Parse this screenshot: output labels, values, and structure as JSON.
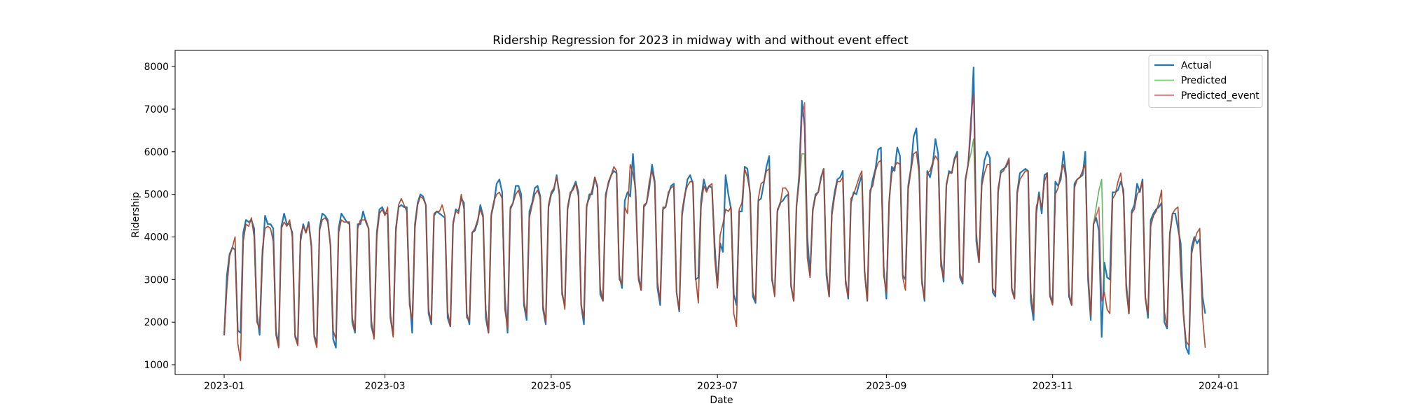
{
  "chart_data": {
    "type": "line",
    "title": "Ridership Regression for 2023 in midway with and without event effect",
    "xlabel": "Date",
    "ylabel": "Ridership",
    "x_range": [
      "2022-12-14",
      "2024-01-19"
    ],
    "ylim": [
      770,
      8380
    ],
    "grid": false,
    "legend_position": "top-right",
    "x_ticks": [
      "2023-01",
      "2023-03",
      "2023-05",
      "2023-07",
      "2023-09",
      "2023-11",
      "2024-01"
    ],
    "y_ticks": [
      1000,
      2000,
      3000,
      4000,
      5000,
      6000,
      7000,
      8000
    ],
    "start_date": "2023-01-01",
    "series": [
      {
        "name": "Actual",
        "color": "#1f77b4",
        "values": [
          1687,
          3100,
          3600,
          3750,
          3700,
          1800,
          1750,
          4100,
          4400,
          4350,
          4400,
          4200,
          2200,
          1700,
          3500,
          4500,
          4300,
          4300,
          4200,
          1800,
          1450,
          4250,
          4550,
          4300,
          4300,
          4100,
          1700,
          1500,
          3900,
          4300,
          4100,
          4350,
          3800,
          1700,
          1500,
          4200,
          4550,
          4500,
          4400,
          3800,
          1600,
          1400,
          4200,
          4550,
          4450,
          4350,
          4300,
          2000,
          1750,
          4300,
          4300,
          4600,
          4350,
          4200,
          1900,
          1650,
          4100,
          4650,
          4700,
          4550,
          4550,
          2100,
          1700,
          4200,
          4700,
          4750,
          4700,
          4700,
          2600,
          1750,
          4300,
          4800,
          5000,
          4950,
          4750,
          2200,
          1950,
          4500,
          4600,
          4550,
          4500,
          4450,
          2100,
          1900,
          4300,
          4650,
          4600,
          4900,
          4800,
          2200,
          1950,
          4100,
          4150,
          4350,
          4750,
          4500,
          2100,
          1750,
          4500,
          4800,
          5250,
          5350,
          5050,
          2600,
          1750,
          4650,
          4800,
          5200,
          5200,
          5000,
          2400,
          2050,
          4600,
          4800,
          5150,
          5200,
          4950,
          2300,
          1950,
          4700,
          5000,
          5100,
          5450,
          5000,
          2650,
          2400,
          4650,
          5000,
          5150,
          5300,
          5050,
          2400,
          1950,
          4700,
          5000,
          5000,
          5400,
          5150,
          2650,
          2500,
          5000,
          5250,
          5450,
          5550,
          5500,
          3100,
          2800,
          4850,
          5050,
          4950,
          5950,
          5000,
          3100,
          2750,
          4700,
          4800,
          5150,
          5700,
          5300,
          2800,
          2400,
          4650,
          4700,
          5000,
          5200,
          5250,
          2700,
          2250,
          4500,
          4950,
          5350,
          5450,
          5250,
          3000,
          3050,
          4850,
          5350,
          5100,
          5200,
          5150,
          3800,
          2850,
          3850,
          3650,
          5450,
          5000,
          4650,
          2650,
          2400,
          4600,
          4600,
          5650,
          5600,
          5000,
          2600,
          2450,
          4850,
          4900,
          5250,
          5650,
          5900,
          3000,
          2650,
          4600,
          4800,
          4850,
          4950,
          5000,
          2850,
          2500,
          4700,
          5450,
          7200,
          6600,
          4000,
          3100,
          4650,
          5000,
          5050,
          5400,
          5600,
          3100,
          2600,
          4600,
          5050,
          5350,
          5400,
          5550,
          3000,
          2550,
          4800,
          5050,
          5000,
          5250,
          5450,
          3200,
          2500,
          5000,
          5350,
          5600,
          6050,
          6100,
          3300,
          2550,
          4800,
          5650,
          5550,
          6100,
          5900,
          3100,
          3000,
          5200,
          5600,
          6350,
          6550,
          5600,
          3000,
          2500,
          5550,
          5400,
          5700,
          6300,
          5950,
          3500,
          2950,
          5200,
          5550,
          5500,
          5850,
          6000,
          3050,
          2900,
          5350,
          5700,
          6550,
          7980,
          3900,
          3400,
          5300,
          5800,
          6000,
          5850,
          2700,
          2600,
          5050,
          5550,
          5600,
          5650,
          5800,
          2800,
          2550,
          5050,
          5500,
          5550,
          5600,
          5550,
          2500,
          2050,
          4550,
          5050,
          4550,
          5450,
          5500,
          2650,
          2450,
          5300,
          5200,
          5350,
          6000,
          5400,
          2600,
          2400,
          5250,
          5350,
          5400,
          5450,
          6000,
          3000,
          2050,
          4300,
          4450,
          4150,
          1650,
          3400,
          3050,
          3000,
          5050,
          5050,
          5100,
          5300,
          5100,
          2900,
          2200,
          4600,
          4750,
          5250,
          5050,
          5350,
          2600,
          2100,
          4400,
          4550,
          4650,
          4700,
          4800,
          2000,
          1850,
          4050,
          4550,
          4550,
          4200,
          3850,
          2200,
          1400,
          1250,
          3750,
          4000,
          3850,
          3950,
          2600,
          2200
        ]
      },
      {
        "name": "Predicted",
        "color": "#2ca02c",
        "values": [
          1700,
          2800,
          3550,
          3750,
          4000,
          1500,
          1100,
          3900,
          4300,
          4250,
          4450,
          4000,
          2000,
          1850,
          3700,
          4200,
          4250,
          4200,
          3900,
          1700,
          1400,
          4200,
          4350,
          4250,
          4400,
          4000,
          1650,
          1450,
          4050,
          4250,
          4100,
          4300,
          3750,
          1650,
          1400,
          4150,
          4400,
          4450,
          4350,
          3800,
          1800,
          1600,
          4100,
          4400,
          4350,
          4350,
          4350,
          2100,
          1800,
          4200,
          4400,
          4400,
          4400,
          4200,
          2050,
          1600,
          4000,
          4550,
          4650,
          4500,
          4700,
          2200,
          1650,
          4100,
          4750,
          4900,
          4750,
          4600,
          2400,
          2050,
          4200,
          4750,
          4950,
          4900,
          4750,
          2300,
          2000,
          4550,
          4600,
          4600,
          4750,
          4500,
          2250,
          1900,
          4350,
          4600,
          4550,
          5000,
          4650,
          2100,
          2050,
          4100,
          4200,
          4400,
          4650,
          4450,
          2300,
          1750,
          4550,
          4850,
          5000,
          5050,
          4900,
          2300,
          1850,
          4700,
          4800,
          5000,
          5100,
          4850,
          2500,
          2150,
          4450,
          4750,
          5000,
          5100,
          4900,
          2400,
          2000,
          4750,
          5050,
          5150,
          5400,
          5050,
          2750,
          2300,
          4700,
          5050,
          5100,
          5250,
          4950,
          2400,
          2100,
          4750,
          4900,
          5100,
          5400,
          5200,
          2800,
          2500,
          4900,
          5300,
          5450,
          5650,
          5550,
          3000,
          2900,
          4700,
          4550,
          5700,
          5500,
          5100,
          3000,
          2750,
          4750,
          4800,
          5300,
          5550,
          5250,
          2950,
          2500,
          4700,
          4700,
          5050,
          5150,
          5200,
          2700,
          2300,
          4600,
          5000,
          5200,
          5300,
          5300,
          3050,
          2450,
          4700,
          5200,
          5050,
          5200,
          5250,
          3500,
          2800,
          4050,
          4300,
          4650,
          4600,
          4700,
          2200,
          1900,
          4650,
          4800,
          5600,
          5400,
          5050,
          2700,
          2500,
          4900,
          5250,
          5300,
          5550,
          5600,
          3100,
          2600,
          4650,
          4750,
          5150,
          5150,
          5050,
          2900,
          2500,
          4700,
          5300,
          5950,
          5950,
          3500,
          3050,
          4600,
          4950,
          5050,
          5350,
          5600,
          3250,
          2600,
          4500,
          4950,
          5300,
          5300,
          5400,
          2900,
          2600,
          4900,
          5000,
          5200,
          5400,
          5550,
          3150,
          2500,
          5100,
          5200,
          5550,
          5750,
          5800,
          3100,
          2700,
          4850,
          5500,
          5650,
          5750,
          5700,
          3050,
          2750,
          5100,
          5550,
          5950,
          6000,
          5500,
          2900,
          2550,
          5500,
          5550,
          5750,
          5900,
          5800,
          3300,
          3050,
          5250,
          5500,
          5500,
          5800,
          5950,
          3150,
          2950,
          5300,
          5700,
          5950,
          6300,
          4100,
          3400,
          5200,
          5500,
          5700,
          5700,
          2800,
          2650,
          5150,
          5500,
          5550,
          5700,
          5850,
          2750,
          2550,
          5000,
          5350,
          5450,
          5550,
          5550,
          2700,
          2200,
          4700,
          4950,
          4700,
          5300,
          5500,
          2600,
          2400,
          5000,
          5150,
          5500,
          5700,
          5350,
          2700,
          2400,
          5150,
          5350,
          5400,
          5550,
          5700,
          3200,
          2150,
          4300,
          4700,
          5100,
          5350,
          2650,
          2300,
          2200,
          4900,
          5000,
          5300,
          5500,
          4950,
          2750,
          2200,
          4550,
          4650,
          5000,
          5100,
          5300,
          2550,
          2200,
          4250,
          4500,
          4600,
          4800,
          5100,
          2250,
          1900,
          4100,
          4550,
          4650,
          4700,
          3200,
          2200,
          1550,
          1450,
          3600,
          3900,
          4100,
          4200,
          2150,
          1400
        ]
      },
      {
        "name": "Predicted_event",
        "color": "#d62728",
        "values": [
          1700,
          2800,
          3550,
          3750,
          4000,
          1500,
          1100,
          3900,
          4300,
          4250,
          4450,
          4000,
          2000,
          1850,
          3700,
          4200,
          4250,
          4200,
          3900,
          1700,
          1400,
          4200,
          4350,
          4250,
          4400,
          4000,
          1650,
          1450,
          4050,
          4250,
          4100,
          4300,
          3750,
          1650,
          1400,
          4150,
          4400,
          4450,
          4350,
          3800,
          1800,
          1600,
          4100,
          4400,
          4350,
          4350,
          4350,
          2100,
          1800,
          4200,
          4400,
          4400,
          4400,
          4200,
          2050,
          1600,
          4000,
          4550,
          4650,
          4500,
          4700,
          2200,
          1650,
          4100,
          4750,
          4900,
          4750,
          4600,
          2400,
          2050,
          4200,
          4750,
          4950,
          4900,
          4750,
          2300,
          2000,
          4550,
          4600,
          4600,
          4750,
          4500,
          2250,
          1900,
          4350,
          4600,
          4550,
          5000,
          4650,
          2100,
          2050,
          4100,
          4200,
          4400,
          4650,
          4450,
          2300,
          1750,
          4550,
          4850,
          5000,
          5050,
          4900,
          2300,
          1850,
          4700,
          4800,
          5000,
          5100,
          4850,
          2500,
          2150,
          4450,
          4750,
          5000,
          5100,
          4900,
          2400,
          2000,
          4750,
          5050,
          5150,
          5400,
          5050,
          2750,
          2300,
          4700,
          5050,
          5100,
          5250,
          4950,
          2400,
          2100,
          4750,
          4900,
          5100,
          5400,
          5200,
          2800,
          2500,
          4900,
          5300,
          5450,
          5650,
          5550,
          3000,
          2900,
          4700,
          4550,
          5700,
          5500,
          5100,
          3000,
          2750,
          4750,
          4800,
          5300,
          5550,
          5250,
          2950,
          2500,
          4700,
          4700,
          5050,
          5150,
          5200,
          2700,
          2300,
          4600,
          5000,
          5200,
          5300,
          5300,
          3050,
          2450,
          4700,
          5200,
          5050,
          5200,
          5250,
          3500,
          2800,
          4050,
          4300,
          4650,
          4600,
          4700,
          2200,
          1900,
          4650,
          4800,
          5600,
          5400,
          5050,
          2700,
          2500,
          4900,
          5250,
          5300,
          5550,
          5600,
          3100,
          2600,
          4650,
          4750,
          5150,
          5150,
          5050,
          2900,
          2500,
          4700,
          5300,
          6800,
          7150,
          3500,
          3050,
          4600,
          4950,
          5050,
          5350,
          5600,
          3250,
          2600,
          4500,
          4950,
          5300,
          5300,
          5400,
          2900,
          2600,
          4900,
          5000,
          5200,
          5400,
          5550,
          3150,
          2500,
          5100,
          5200,
          5550,
          5750,
          5800,
          3100,
          2700,
          4850,
          5500,
          5650,
          5750,
          5700,
          3050,
          2750,
          5100,
          5550,
          5950,
          6000,
          5500,
          2900,
          2550,
          5500,
          5550,
          5750,
          5900,
          5800,
          3300,
          3050,
          5250,
          5500,
          5500,
          5800,
          5950,
          3150,
          2950,
          5300,
          5700,
          6800,
          7350,
          4100,
          3400,
          5200,
          5500,
          5700,
          5700,
          2800,
          2650,
          5150,
          5500,
          5550,
          5700,
          5850,
          2750,
          2550,
          5000,
          5350,
          5450,
          5550,
          5550,
          2700,
          2200,
          4700,
          4950,
          4700,
          5300,
          5500,
          2600,
          2400,
          5000,
          5150,
          5500,
          5700,
          5350,
          2700,
          2400,
          5150,
          5350,
          5400,
          5550,
          5700,
          3200,
          2150,
          4300,
          4500,
          4700,
          2500,
          2700,
          2300,
          2200,
          4900,
          5000,
          5300,
          5500,
          4950,
          2750,
          2200,
          4550,
          4650,
          5000,
          5100,
          5300,
          2550,
          2200,
          4250,
          4500,
          4600,
          4800,
          5100,
          2250,
          1900,
          4100,
          4550,
          4650,
          4700,
          3200,
          2200,
          1550,
          1450,
          3600,
          3900,
          4100,
          4200,
          2150,
          1400
        ]
      }
    ]
  }
}
